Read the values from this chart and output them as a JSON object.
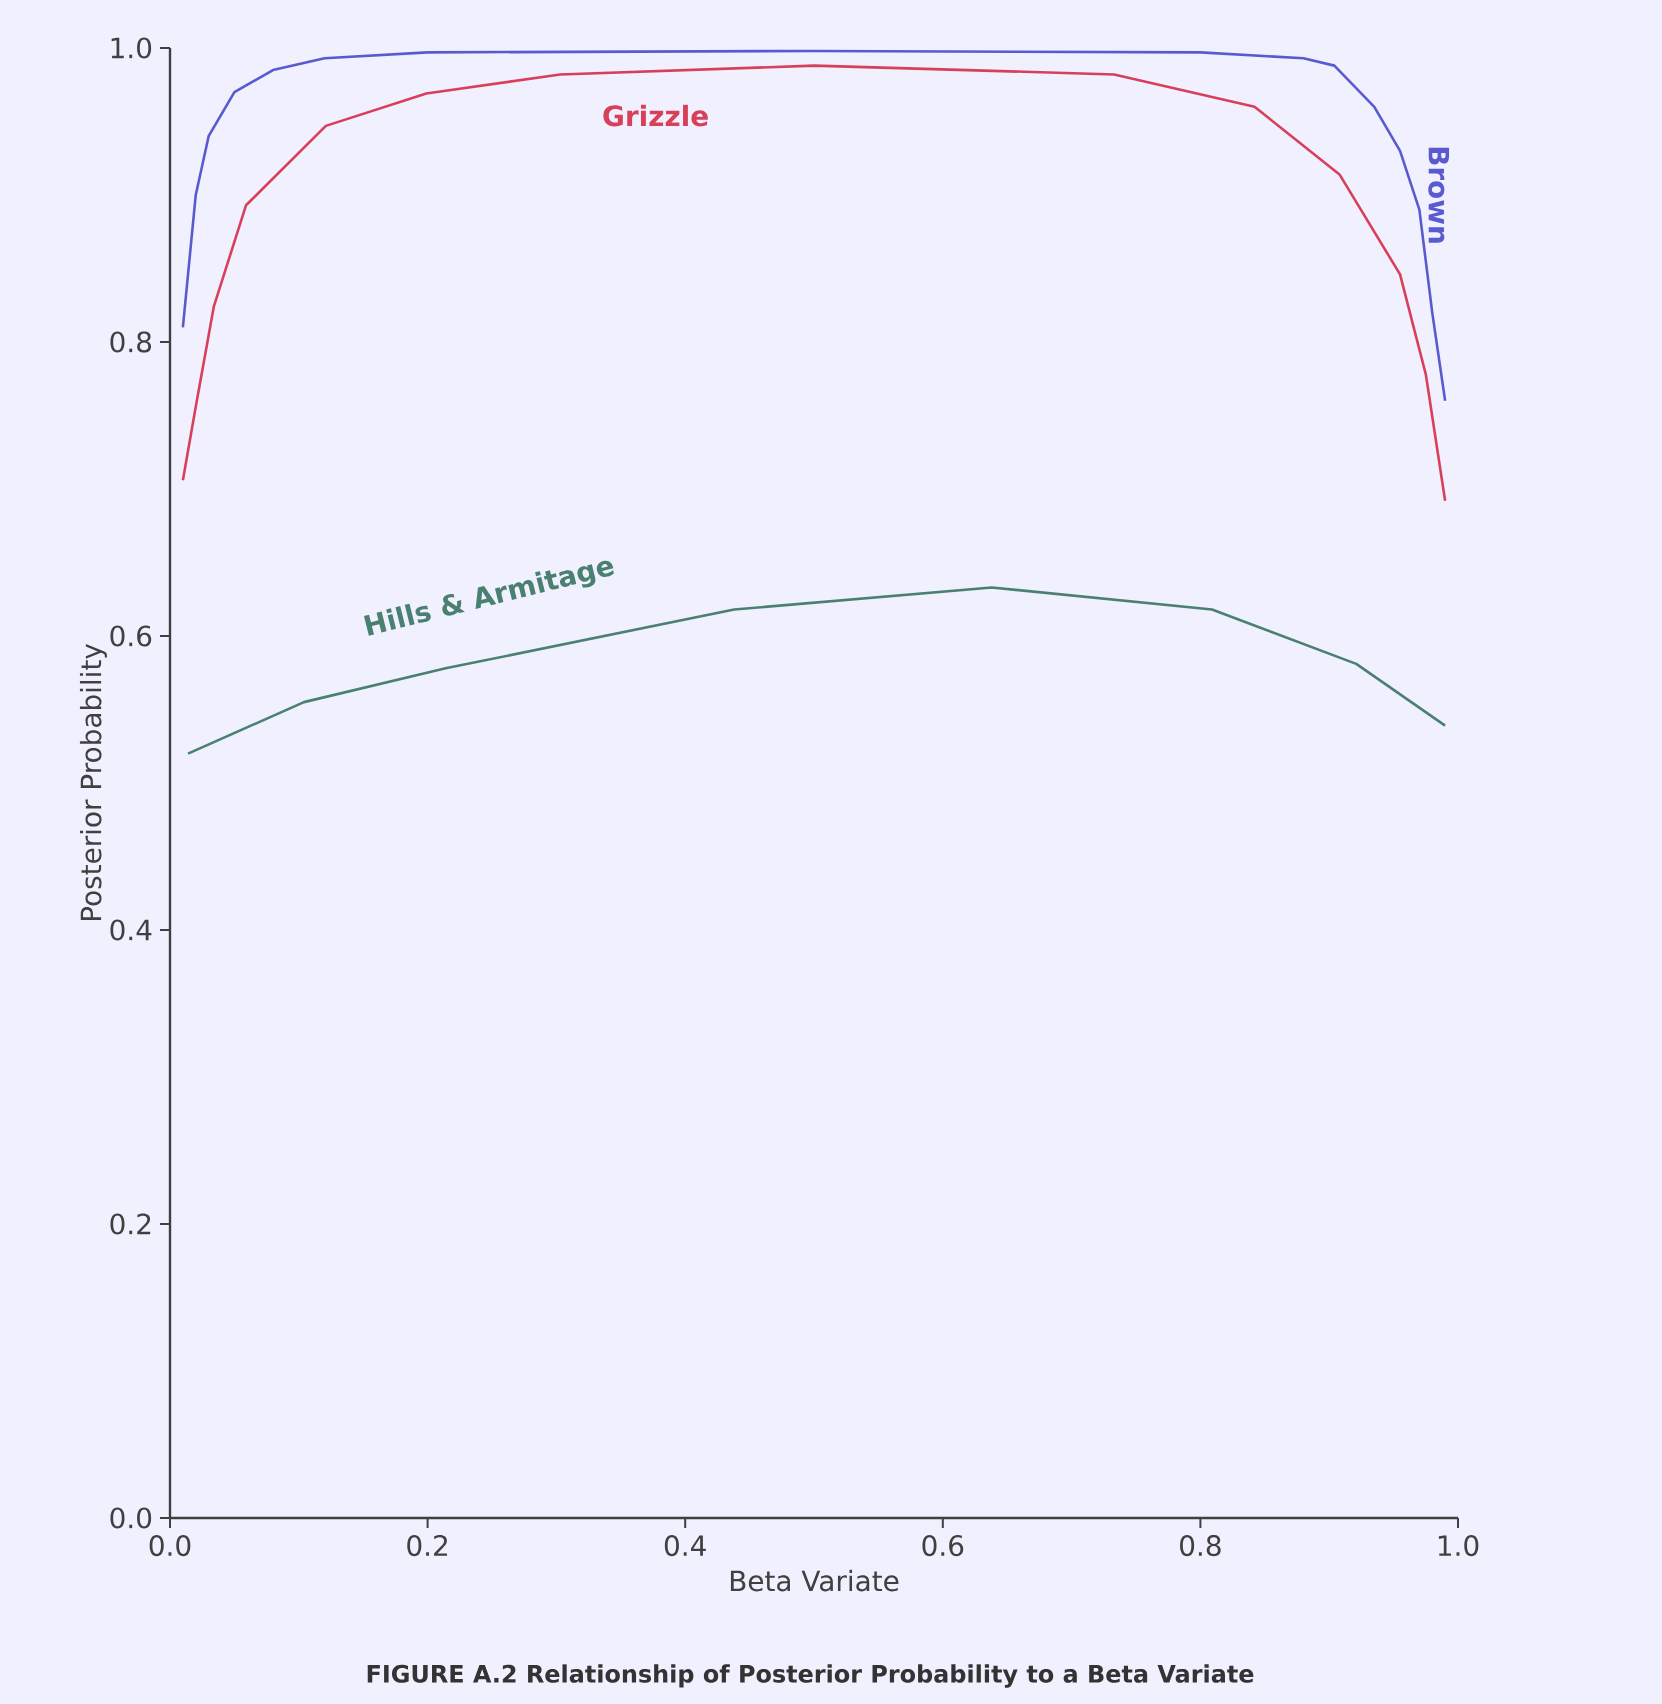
{
  "chart_data": {
    "type": "line",
    "xlabel": "Beta Variate",
    "ylabel": "Posterior Probability",
    "xlim": [
      0,
      1
    ],
    "ylim": [
      0,
      1
    ],
    "xticks": [
      {
        "value": 0,
        "label": "0.0"
      },
      {
        "value": 0.2,
        "label": "0.2"
      },
      {
        "value": 0.4,
        "label": "0.4"
      },
      {
        "value": 0.6,
        "label": "0.6"
      },
      {
        "value": 0.8,
        "label": "0.8"
      },
      {
        "value": 1,
        "label": "1.0"
      }
    ],
    "yticks": [
      {
        "value": 0,
        "label": "0.0"
      },
      {
        "value": 0.2,
        "label": "0.2"
      },
      {
        "value": 0.4,
        "label": "0.4"
      },
      {
        "value": 0.6,
        "label": "0.6"
      },
      {
        "value": 0.8,
        "label": "0.8"
      },
      {
        "value": 1,
        "label": "1.0"
      }
    ],
    "grid": false,
    "legend": false,
    "marker": "none",
    "line_style": "solid",
    "annotations": [
      "FIGURE A.2 Relationship of Posterior Probability to a Beta Variate"
    ],
    "series": [
      {
        "name": "Brown",
        "color": "#5a5ad0",
        "x": [
          0.01,
          0.02,
          0.03,
          0.05,
          0.08,
          0.12,
          0.2,
          0.5,
          0.8,
          0.88,
          0.904,
          0.935,
          0.955,
          0.97,
          0.98,
          0.99
        ],
        "values": [
          0.81,
          0.9,
          0.94,
          0.97,
          0.985,
          0.993,
          0.997,
          0.998,
          0.997,
          0.993,
          0.988,
          0.96,
          0.93,
          0.89,
          0.82,
          0.76
        ]
      },
      {
        "name": "Grizzle",
        "color": "#d8405a",
        "x": [
          0.01,
          0.02,
          0.034,
          0.059,
          0.121,
          0.199,
          0.303,
          0.5,
          0.733,
          0.842,
          0.908,
          0.955,
          0.975,
          0.99
        ],
        "values": [
          0.706,
          0.756,
          0.824,
          0.893,
          0.947,
          0.969,
          0.982,
          0.988,
          0.982,
          0.96,
          0.914,
          0.846,
          0.778,
          0.692
        ]
      },
      {
        "name": "Hills & Armitage",
        "color": "#4a8070",
        "x": [
          0.014,
          0.104,
          0.214,
          0.438,
          0.638,
          0.809,
          0.921,
          0.99
        ],
        "values": [
          0.52,
          0.555,
          0.578,
          0.618,
          0.633,
          0.618,
          0.581,
          0.539
        ]
      }
    ]
  }
}
